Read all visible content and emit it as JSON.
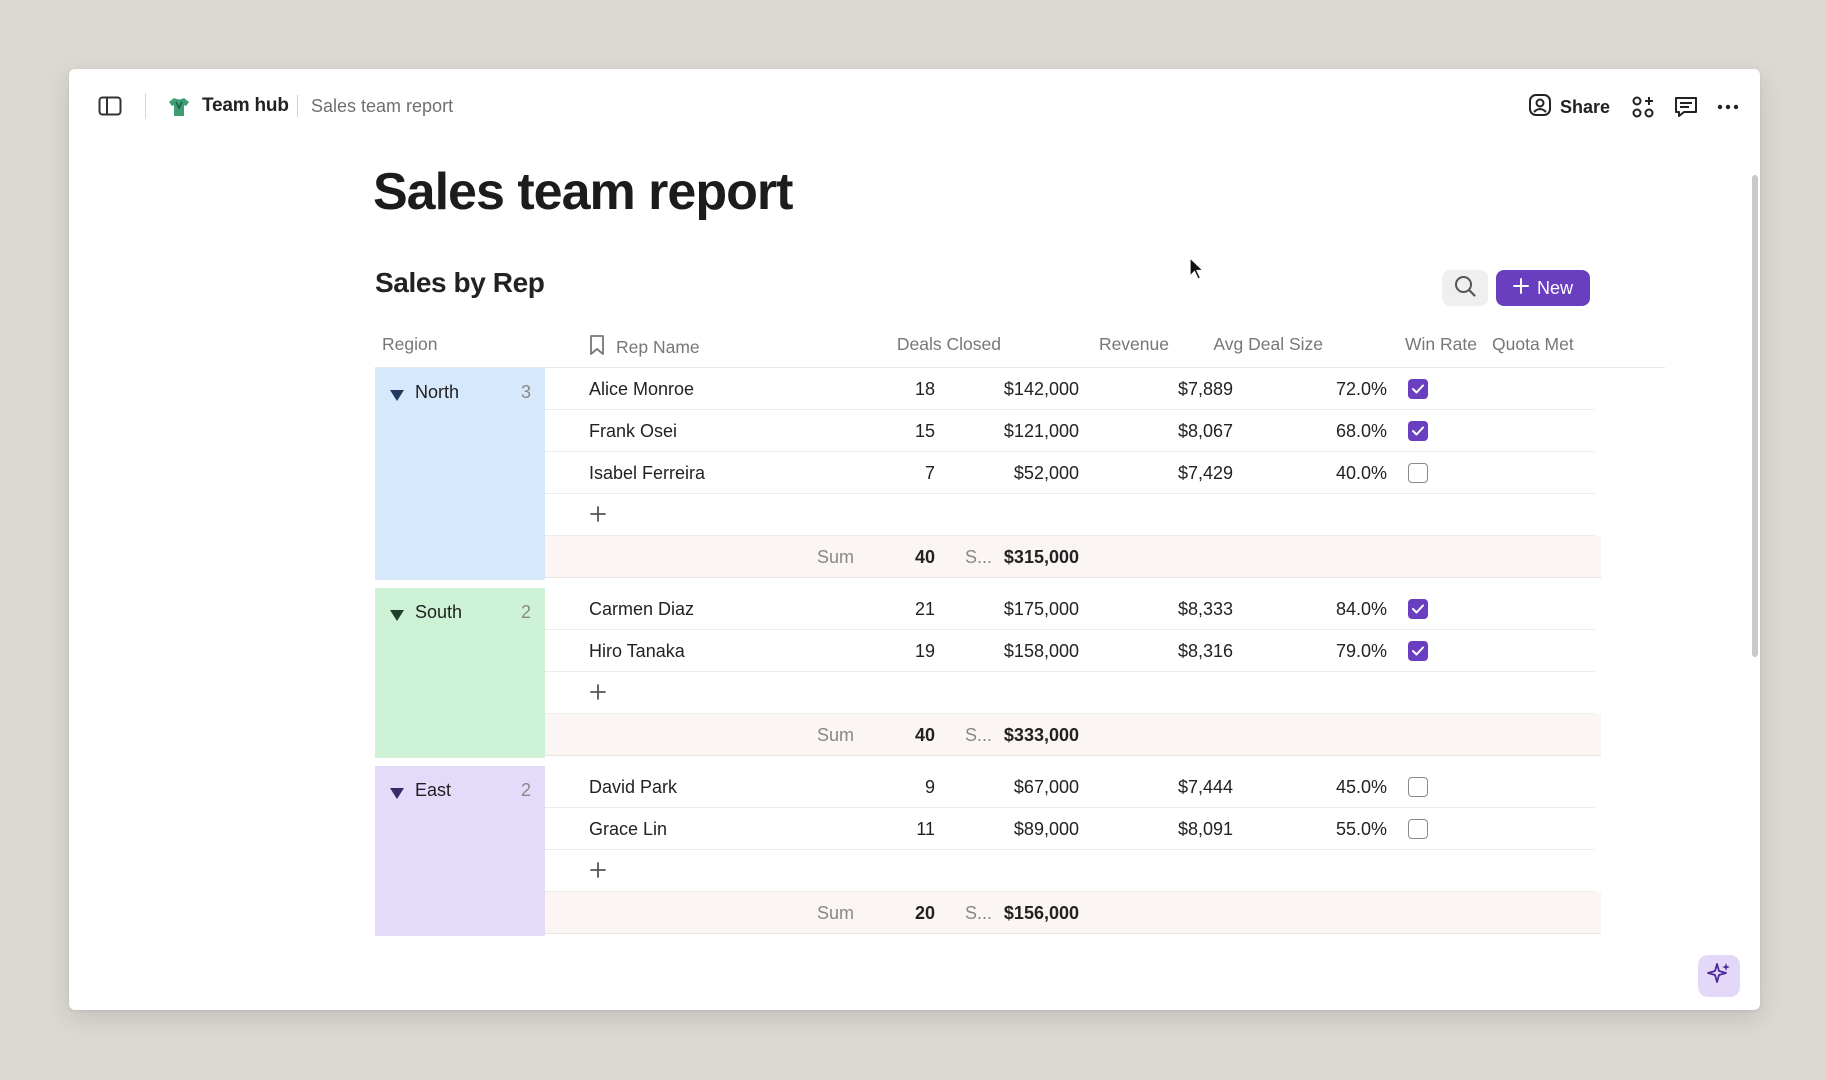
{
  "breadcrumb": {
    "hub": "Team hub",
    "page": "Sales team report"
  },
  "topbar": {
    "share_label": "Share"
  },
  "page": {
    "title": "Sales team report"
  },
  "database": {
    "title": "Sales by Rep",
    "new_label": "New",
    "columns": {
      "region": "Region",
      "rep_name": "Rep Name",
      "deals_closed": "Deals Closed",
      "revenue": "Revenue",
      "avg_deal_size": "Avg Deal Size",
      "win_rate": "Win Rate",
      "quota_met": "Quota Met"
    },
    "groups": [
      {
        "name": "North",
        "count": "3",
        "color": "#d6e8fb",
        "triangle_color": "#1f3a5c",
        "rows": [
          {
            "name": "Alice Monroe",
            "deals": "18",
            "revenue": "$142,000",
            "avg": "$7,889",
            "win": "72.0%",
            "quota": true
          },
          {
            "name": "Frank Osei",
            "deals": "15",
            "revenue": "$121,000",
            "avg": "$8,067",
            "win": "68.0%",
            "quota": true
          },
          {
            "name": "Isabel Ferreira",
            "deals": "7",
            "revenue": "$52,000",
            "avg": "$7,429",
            "win": "40.0%",
            "quota": false
          }
        ],
        "sum_label": "Sum",
        "sum_deals": "40",
        "sum_rev_label": "S...",
        "sum_revenue": "$315,000"
      },
      {
        "name": "South",
        "count": "2",
        "color": "#cdf2d6",
        "triangle_color": "#1f3f2a",
        "rows": [
          {
            "name": "Carmen Diaz",
            "deals": "21",
            "revenue": "$175,000",
            "avg": "$8,333",
            "win": "84.0%",
            "quota": true
          },
          {
            "name": "Hiro Tanaka",
            "deals": "19",
            "revenue": "$158,000",
            "avg": "$8,316",
            "win": "79.0%",
            "quota": true
          }
        ],
        "sum_label": "Sum",
        "sum_deals": "40",
        "sum_rev_label": "S...",
        "sum_revenue": "$333,000"
      },
      {
        "name": "East",
        "count": "2",
        "color": "#e4dbfa",
        "triangle_color": "#3a2a66",
        "rows": [
          {
            "name": "David Park",
            "deals": "9",
            "revenue": "$67,000",
            "avg": "$7,444",
            "win": "45.0%",
            "quota": false
          },
          {
            "name": "Grace Lin",
            "deals": "11",
            "revenue": "$89,000",
            "avg": "$8,091",
            "win": "55.0%",
            "quota": false
          }
        ],
        "sum_label": "Sum",
        "sum_deals": "20",
        "sum_rev_label": "S...",
        "sum_revenue": "$156,000"
      }
    ]
  },
  "icons": {
    "sidebar": "sidebar-toggle-icon",
    "hub": "shirt-logo-icon",
    "share": "person-icon",
    "apps": "apps-plus-icon",
    "comment": "comment-icon",
    "more": "more-horizontal-icon",
    "search": "search-icon",
    "new": "plus-icon",
    "rep_name": "bookmark-icon",
    "ai": "sparkle-icon"
  },
  "colors": {
    "accent": "#6a3fbf"
  }
}
